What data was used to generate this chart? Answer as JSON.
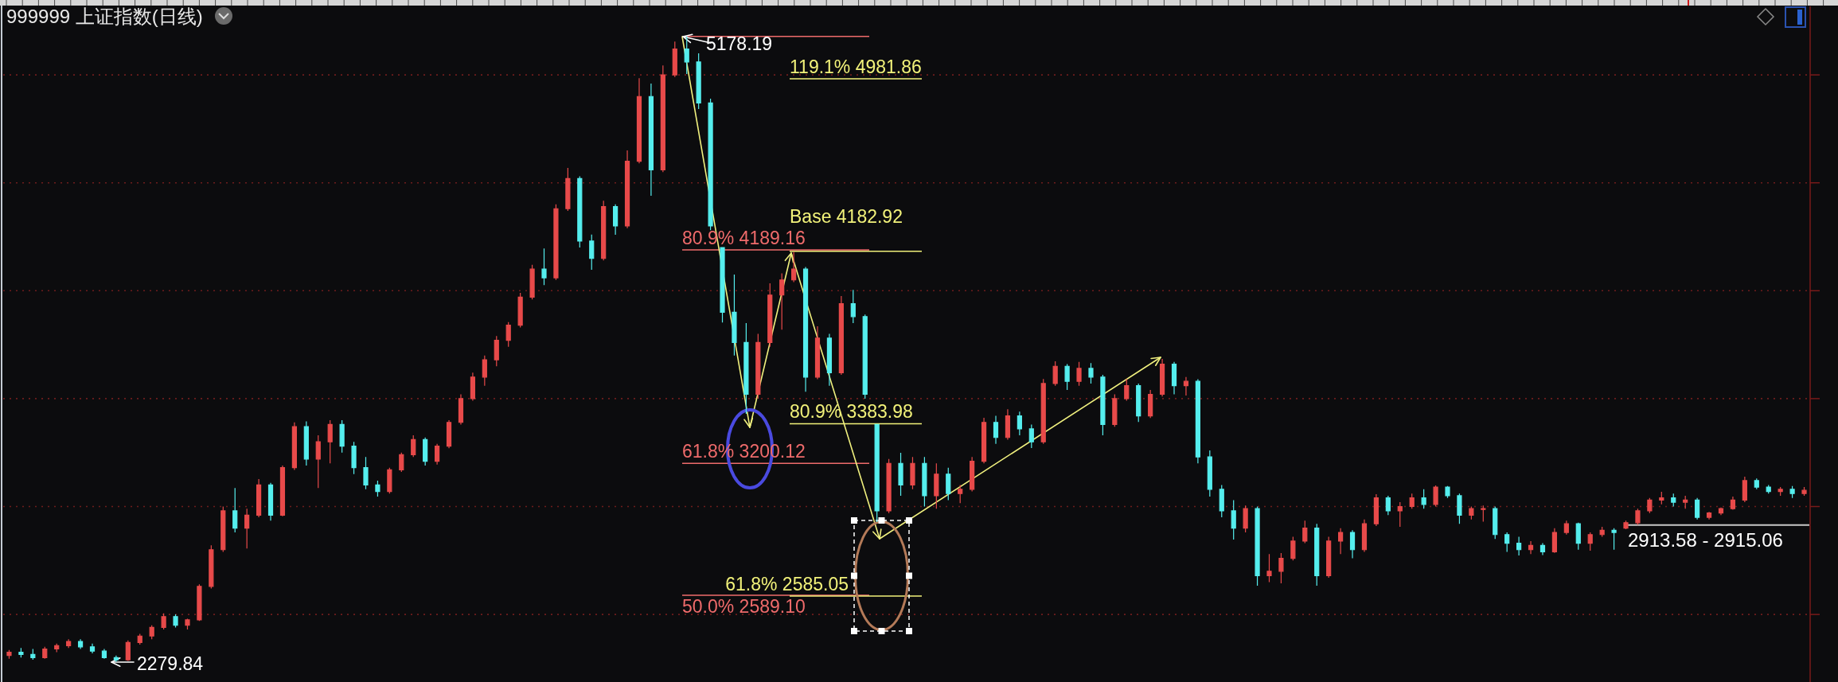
{
  "chart_data": {
    "type": "candlestick",
    "title": "999999 上证指数(日线)",
    "categories": [
      null,
      null,
      null,
      null,
      null,
      null,
      null,
      null,
      null,
      null,
      null,
      null,
      null,
      null,
      null,
      null,
      null,
      null,
      null,
      null,
      null,
      null,
      null,
      null,
      null,
      null,
      null,
      null,
      null,
      null,
      null,
      null,
      null,
      null,
      null,
      null,
      null,
      null,
      null,
      null,
      null,
      null,
      null,
      null,
      null,
      null,
      null,
      null,
      null,
      null,
      null,
      null,
      null,
      null,
      null,
      null,
      null,
      null,
      null,
      null,
      null,
      null,
      null,
      null,
      null,
      null,
      null,
      null,
      null,
      null,
      null,
      null,
      null,
      null,
      null,
      null,
      null,
      null,
      null,
      null,
      null,
      null,
      null,
      null,
      null,
      null,
      null,
      null,
      null,
      null,
      null,
      null,
      null,
      null,
      null,
      null,
      null,
      null,
      null,
      null,
      null,
      null,
      null,
      null,
      null,
      null,
      null,
      null,
      null,
      null,
      null,
      null,
      null,
      null,
      null,
      null,
      null,
      null,
      null,
      null,
      null,
      null,
      null,
      null,
      null,
      null,
      null,
      null,
      null,
      null,
      null,
      null,
      null,
      null,
      null,
      null,
      null,
      null,
      null,
      null,
      null,
      null,
      null,
      null,
      null,
      null,
      null,
      null,
      null,
      null,
      null,
      null
    ],
    "ohlc": [
      [
        2310,
        2335,
        2295,
        2325
      ],
      [
        2325,
        2345,
        2300,
        2315
      ],
      [
        2315,
        2340,
        2290,
        2300
      ],
      [
        2300,
        2350,
        2295,
        2340
      ],
      [
        2340,
        2365,
        2325,
        2355
      ],
      [
        2355,
        2385,
        2345,
        2375
      ],
      [
        2375,
        2385,
        2340,
        2350
      ],
      [
        2350,
        2365,
        2320,
        2330
      ],
      [
        2330,
        2340,
        2295,
        2300
      ],
      [
        2300,
        2310,
        2279.84,
        2290
      ],
      [
        2290,
        2380,
        2285,
        2370
      ],
      [
        2370,
        2410,
        2360,
        2400
      ],
      [
        2400,
        2450,
        2385,
        2440
      ],
      [
        2440,
        2505,
        2430,
        2490
      ],
      [
        2490,
        2500,
        2440,
        2450
      ],
      [
        2450,
        2480,
        2430,
        2475
      ],
      [
        2475,
        2640,
        2470,
        2630
      ],
      [
        2630,
        2820,
        2620,
        2800
      ],
      [
        2800,
        3000,
        2790,
        2980
      ],
      [
        2980,
        3086,
        2880,
        2900
      ],
      [
        2900,
        2990,
        2806,
        2960
      ],
      [
        2960,
        3127,
        2950,
        3100
      ],
      [
        3100,
        3110,
        2935,
        2960
      ],
      [
        2960,
        3190,
        2955,
        3180
      ],
      [
        3180,
        3390,
        3170,
        3370
      ],
      [
        3370,
        3395,
        3190,
        3220
      ],
      [
        3220,
        3330,
        3086,
        3300
      ],
      [
        3300,
        3400,
        3200,
        3380
      ],
      [
        3380,
        3400,
        3250,
        3280
      ],
      [
        3280,
        3300,
        3150,
        3180
      ],
      [
        3180,
        3230,
        3080,
        3100
      ],
      [
        3100,
        3120,
        3046,
        3070
      ],
      [
        3070,
        3180,
        3060,
        3170
      ],
      [
        3170,
        3250,
        3160,
        3240
      ],
      [
        3240,
        3330,
        3230,
        3310
      ],
      [
        3310,
        3320,
        3190,
        3210
      ],
      [
        3210,
        3290,
        3195,
        3280
      ],
      [
        3280,
        3400,
        3270,
        3390
      ],
      [
        3390,
        3520,
        3380,
        3500
      ],
      [
        3500,
        3620,
        3490,
        3600
      ],
      [
        3600,
        3700,
        3560,
        3680
      ],
      [
        3680,
        3790,
        3650,
        3770
      ],
      [
        3770,
        3855,
        3740,
        3840
      ],
      [
        3840,
        3990,
        3830,
        3970
      ],
      [
        3970,
        4120,
        3960,
        4100
      ],
      [
        4100,
        4196,
        4026,
        4060
      ],
      [
        4060,
        4400,
        4050,
        4380
      ],
      [
        4380,
        4569,
        4370,
        4520
      ],
      [
        4520,
        4530,
        4200,
        4230
      ],
      [
        4230,
        4260,
        4097,
        4150
      ],
      [
        4150,
        4417,
        4140,
        4390
      ],
      [
        4390,
        4400,
        4259,
        4300
      ],
      [
        4300,
        4650,
        4290,
        4600
      ],
      [
        4600,
        4985,
        4590,
        4900
      ],
      [
        4900,
        4960,
        4440,
        4560
      ],
      [
        4560,
        5044,
        4550,
        5000
      ],
      [
        5000,
        5154,
        4990,
        5120
      ],
      [
        5120,
        5178.19,
        5004,
        5060
      ],
      [
        5060,
        5100,
        4842,
        4870
      ],
      [
        4870,
        4890,
        4280,
        4300
      ],
      [
        4200,
        4202,
        3853,
        3900
      ],
      [
        3900,
        4075,
        3700,
        3760
      ],
      [
        3760,
        3850,
        3430,
        3520
      ],
      [
        3520,
        3800,
        3500,
        3760
      ],
      [
        3760,
        4034,
        3740,
        3980
      ],
      [
        3980,
        4080,
        3820,
        4050
      ],
      [
        4050,
        4180,
        4040,
        4100
      ],
      [
        4100,
        4110,
        3532,
        3600
      ],
      [
        3600,
        3835,
        3590,
        3780
      ],
      [
        3780,
        3800,
        3560,
        3620
      ],
      [
        3620,
        3975,
        3610,
        3940
      ],
      [
        3940,
        4004,
        3850,
        3880
      ],
      [
        3880,
        3890,
        3500,
        3520
      ],
      [
        3380,
        3382,
        2928,
        2980
      ],
      [
        2980,
        3220,
        2970,
        3200
      ],
      [
        3200,
        3249,
        3050,
        3100
      ],
      [
        3100,
        3230,
        3080,
        3200
      ],
      [
        3200,
        3230,
        3000,
        3050
      ],
      [
        3050,
        3200,
        2990,
        3150
      ],
      [
        3150,
        3180,
        3030,
        3060
      ],
      [
        3060,
        3100,
        3016,
        3080
      ],
      [
        3080,
        3230,
        3070,
        3210
      ],
      [
        3210,
        3411,
        3200,
        3390
      ],
      [
        3390,
        3420,
        3290,
        3320
      ],
      [
        3320,
        3451,
        3310,
        3420
      ],
      [
        3420,
        3440,
        3330,
        3360
      ],
      [
        3360,
        3380,
        3271,
        3300
      ],
      [
        3300,
        3591,
        3290,
        3570
      ],
      [
        3570,
        3673,
        3560,
        3650
      ],
      [
        3650,
        3660,
        3540,
        3580
      ],
      [
        3580,
        3670,
        3560,
        3640
      ],
      [
        3640,
        3665,
        3570,
        3600
      ],
      [
        3600,
        3610,
        3330,
        3380
      ],
      [
        3380,
        3520,
        3370,
        3500
      ],
      [
        3500,
        3591,
        3490,
        3560
      ],
      [
        3560,
        3570,
        3392,
        3420
      ],
      [
        3420,
        3540,
        3410,
        3520
      ],
      [
        3520,
        3684,
        3510,
        3660
      ],
      [
        3660,
        3670,
        3520,
        3560
      ],
      [
        3560,
        3600,
        3514,
        3580
      ],
      [
        3580,
        3590,
        3200,
        3230
      ],
      [
        3230,
        3260,
        3046,
        3080
      ],
      [
        3080,
        3100,
        2950,
        2980
      ],
      [
        2980,
        3030,
        2847,
        2900
      ],
      [
        2900,
        3005,
        2880,
        2990
      ],
      [
        2990,
        3000,
        2633,
        2680
      ],
      [
        2680,
        2780,
        2650,
        2700
      ],
      [
        2700,
        2784,
        2644,
        2760
      ],
      [
        2760,
        2860,
        2750,
        2840
      ],
      [
        2840,
        2935,
        2830,
        2900
      ],
      [
        2900,
        2920,
        2633,
        2680
      ],
      [
        2680,
        2860,
        2670,
        2840
      ],
      [
        2840,
        2900,
        2780,
        2880
      ],
      [
        2880,
        2890,
        2760,
        2800
      ],
      [
        2800,
        2940,
        2790,
        2920
      ],
      [
        2920,
        3057,
        2910,
        3040
      ],
      [
        3040,
        3050,
        2960,
        2980
      ],
      [
        2980,
        3020,
        2906,
        3000
      ],
      [
        3000,
        3060,
        2990,
        3040
      ],
      [
        3040,
        3080,
        2990,
        3010
      ],
      [
        3010,
        3098,
        3000,
        3090
      ],
      [
        3090,
        3095,
        3040,
        3050
      ],
      [
        3050,
        3060,
        2920,
        2960
      ],
      [
        2960,
        3000,
        2940,
        2990
      ],
      [
        2990,
        3005,
        2930,
        2990
      ],
      [
        2990,
        3000,
        2850,
        2870
      ],
      [
        2870,
        2880,
        2790,
        2830
      ],
      [
        2830,
        2860,
        2773,
        2800
      ],
      [
        2800,
        2840,
        2780,
        2820
      ],
      [
        2820,
        2830,
        2775,
        2790
      ],
      [
        2790,
        2900,
        2785,
        2880
      ],
      [
        2880,
        2935,
        2870,
        2920
      ],
      [
        2920,
        2925,
        2800,
        2830
      ],
      [
        2830,
        2880,
        2795,
        2870
      ],
      [
        2870,
        2906,
        2860,
        2890
      ],
      [
        2890,
        2900,
        2800,
        2880
      ],
      [
        2900,
        2935,
        2895,
        2925
      ],
      [
        2925,
        2990,
        2915,
        2980
      ],
      [
        2980,
        3040,
        2970,
        3030
      ],
      [
        3030,
        3068,
        3010,
        3040
      ],
      [
        3040,
        3060,
        3000,
        3020
      ],
      [
        3020,
        3050,
        2990,
        3030
      ],
      [
        3030,
        3040,
        2940,
        2950
      ],
      [
        2950,
        2975,
        2940,
        2970
      ],
      [
        2970,
        2995,
        2960,
        2990
      ],
      [
        2990,
        3046,
        2985,
        3030
      ],
      [
        3030,
        3138,
        3020,
        3120
      ],
      [
        3120,
        3130,
        3080,
        3090
      ],
      [
        3090,
        3100,
        3060,
        3070
      ],
      [
        3070,
        3090,
        3050,
        3080
      ],
      [
        3080,
        3095,
        3040,
        3060
      ],
      [
        3060,
        3090,
        3050,
        3075
      ]
    ],
    "colors": [
      "#e84a4a",
      "#55eeee",
      "#55eeee",
      "#e84a4a",
      "#e84a4a",
      "#e84a4a",
      "#55eeee",
      "#55eeee",
      "#55eeee",
      "#55eeee",
      "#e84a4a",
      "#e84a4a",
      "#e84a4a",
      "#e84a4a",
      "#55eeee",
      "#e84a4a",
      "#e84a4a",
      "#e84a4a",
      "#e84a4a",
      "#55eeee",
      "#e84a4a",
      "#e84a4a",
      "#55eeee",
      "#e84a4a",
      "#e84a4a",
      "#55eeee",
      "#e84a4a",
      "#e84a4a",
      "#55eeee",
      "#55eeee",
      "#55eeee",
      "#55eeee",
      "#e84a4a",
      "#e84a4a",
      "#e84a4a",
      "#55eeee",
      "#e84a4a",
      "#e84a4a",
      "#e84a4a",
      "#e84a4a",
      "#e84a4a",
      "#e84a4a",
      "#e84a4a",
      "#e84a4a",
      "#e84a4a",
      "#55eeee",
      "#e84a4a",
      "#e84a4a",
      "#55eeee",
      "#55eeee",
      "#e84a4a",
      "#55eeee",
      "#e84a4a",
      "#e84a4a",
      "#55eeee",
      "#e84a4a",
      "#e84a4a",
      "#55eeee",
      "#55eeee",
      "#55eeee",
      "#55eeee",
      "#55eeee",
      "#55eeee",
      "#e84a4a",
      "#e84a4a",
      "#e84a4a",
      "#e84a4a",
      "#55eeee",
      "#e84a4a",
      "#55eeee",
      "#e84a4a",
      "#55eeee",
      "#55eeee",
      "#55eeee",
      "#e84a4a",
      "#55eeee",
      "#e84a4a",
      "#55eeee",
      "#e84a4a",
      "#55eeee",
      "#e84a4a",
      "#e84a4a",
      "#e84a4a",
      "#55eeee",
      "#e84a4a",
      "#55eeee",
      "#55eeee",
      "#e84a4a",
      "#e84a4a",
      "#55eeee",
      "#e84a4a",
      "#55eeee",
      "#55eeee",
      "#e84a4a",
      "#e84a4a",
      "#55eeee",
      "#e84a4a",
      "#e84a4a",
      "#55eeee",
      "#e84a4a",
      "#55eeee",
      "#55eeee",
      "#55eeee",
      "#55eeee",
      "#e84a4a",
      "#55eeee",
      "#e84a4a",
      "#e84a4a",
      "#e84a4a",
      "#e84a4a",
      "#55eeee",
      "#e84a4a",
      "#e84a4a",
      "#55eeee",
      "#e84a4a",
      "#e84a4a",
      "#55eeee",
      "#e84a4a",
      "#e84a4a",
      "#55eeee",
      "#e84a4a",
      "#55eeee",
      "#55eeee",
      "#e84a4a",
      "#e84a4a",
      "#55eeee",
      "#55eeee",
      "#55eeee",
      "#e84a4a",
      "#55eeee",
      "#e84a4a",
      "#e84a4a",
      "#55eeee",
      "#e84a4a",
      "#e84a4a",
      "#55eeee",
      "#e84a4a",
      "#e84a4a",
      "#e84a4a",
      "#e84a4a",
      "#55eeee",
      "#e84a4a",
      "#55eeee",
      "#e84a4a",
      "#e84a4a",
      "#e84a4a",
      "#e84a4a",
      "#55eeee",
      "#55eeee",
      "#e84a4a",
      "#55eeee",
      "#e84a4a"
    ],
    "ylim": [
      2187,
      5347
    ],
    "yticks": [
      2500,
      3000,
      3500,
      4000,
      4500,
      5000
    ],
    "tick_labels": false,
    "grid": "y",
    "ref_lines": [
      {
        "axis": "y",
        "value": 5178.19,
        "color": "#ef6b6b"
      },
      {
        "axis": "y",
        "value": 4189.16,
        "label": "80.9% 4189.16",
        "color": "#ef6b6b"
      },
      {
        "axis": "y",
        "value": 3200.12,
        "label": "61.8% 3200.12",
        "color": "#ef6b6b"
      },
      {
        "axis": "y",
        "value": 2589.1,
        "label": "50.0% 2589.10",
        "color": "#ef6b6b"
      },
      {
        "axis": "y",
        "value": 4981.86,
        "label": "119.1% 4981.86",
        "color": "#f2f27a"
      },
      {
        "axis": "y",
        "value": 4182.92,
        "label": "Base 4182.92",
        "color": "#f2f27a"
      },
      {
        "axis": "y",
        "value": 3383.98,
        "label": "80.9% 3383.98",
        "color": "#f2f27a"
      },
      {
        "axis": "y",
        "value": 2585.05,
        "label": "61.8% 2585.05",
        "color": "#f2f27a"
      }
    ],
    "bands": [
      {
        "axis": "y",
        "from": 2913.58,
        "to": 2915.06,
        "label": "2913.58 - 2915.06",
        "color": "#c8c8c8"
      }
    ],
    "annotations": [
      {
        "text": "5178.19",
        "y": 5178.19
      },
      "2279.84"
    ]
  }
}
